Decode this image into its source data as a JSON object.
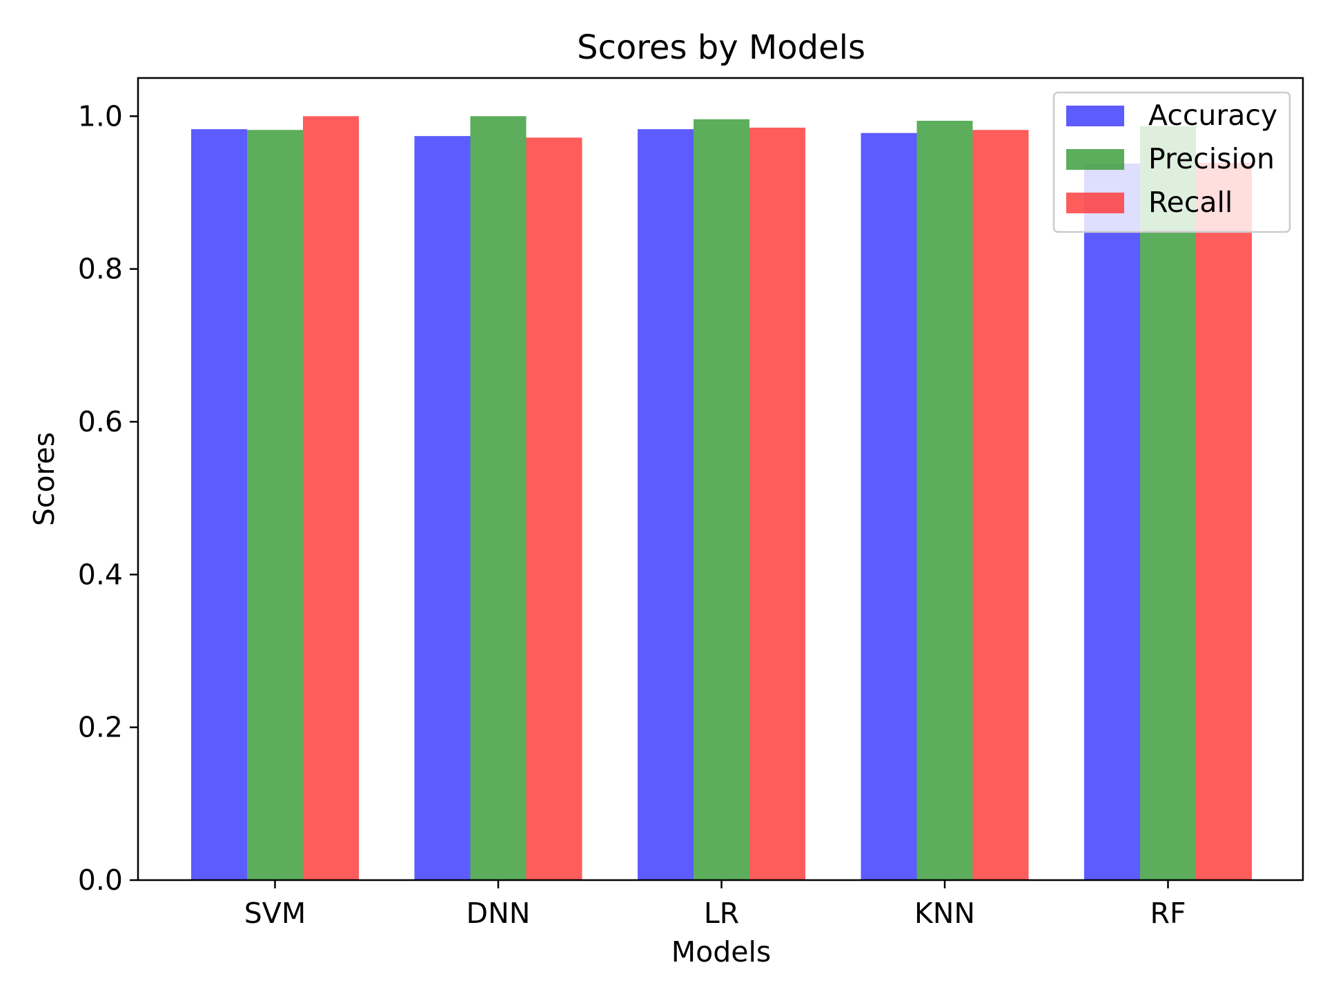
{
  "chart_data": {
    "type": "bar",
    "title": "Scores by Models",
    "xlabel": "Models",
    "ylabel": "Scores",
    "categories": [
      "SVM",
      "DNN",
      "LR",
      "KNN",
      "RF"
    ],
    "series": [
      {
        "name": "Accuracy",
        "color": "#3333ff",
        "values": [
          0.983,
          0.974,
          0.983,
          0.978,
          0.938
        ]
      },
      {
        "name": "Precision",
        "color": "#339933",
        "values": [
          0.982,
          1.0,
          0.996,
          0.994,
          0.987
        ]
      },
      {
        "name": "Recall",
        "color": "#ff3333",
        "values": [
          1.0,
          0.972,
          0.985,
          0.982,
          0.939
        ]
      }
    ],
    "ylim": [
      0,
      1.05
    ],
    "yticks": [
      0.0,
      0.2,
      0.4,
      0.6,
      0.8,
      1.0
    ],
    "ytick_labels": [
      "0.0",
      "0.2",
      "0.4",
      "0.6",
      "0.8",
      "1.0"
    ],
    "grid": false,
    "legend_position": "top-right",
    "bar_opacity": 0.8
  }
}
